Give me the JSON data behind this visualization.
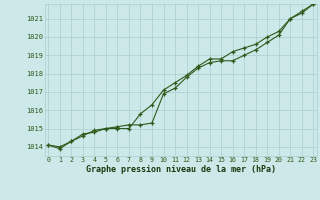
{
  "line1": [
    1014.1,
    1013.9,
    1014.3,
    1014.7,
    1014.8,
    1015.0,
    1015.1,
    1015.2,
    1015.2,
    1015.3,
    1016.9,
    1017.2,
    1017.8,
    1018.3,
    1018.6,
    1018.7,
    1018.7,
    1019.0,
    1019.3,
    1019.7,
    1020.1,
    1021.0,
    1021.3,
    1021.8
  ],
  "line2": [
    1014.1,
    1014.0,
    1014.3,
    1014.6,
    1014.9,
    1015.0,
    1015.0,
    1015.0,
    1015.8,
    1016.3,
    1017.1,
    1017.5,
    1017.9,
    1018.4,
    1018.8,
    1018.8,
    1019.2,
    1019.4,
    1019.6,
    1020.0,
    1020.3,
    1021.0,
    1021.4,
    1021.8
  ],
  "hours": [
    0,
    1,
    2,
    3,
    4,
    5,
    6,
    7,
    8,
    9,
    10,
    11,
    12,
    13,
    14,
    15,
    16,
    17,
    18,
    19,
    20,
    21,
    22,
    23
  ],
  "ylim": [
    1013.5,
    1021.8
  ],
  "yticks": [
    1014,
    1015,
    1016,
    1017,
    1018,
    1019,
    1020,
    1021
  ],
  "xlabel": "Graphe pression niveau de la mer (hPa)",
  "line_color": "#2d5a1b",
  "bg_color": "#cce8e8",
  "grid_color": "#aacece",
  "text_color": "#2d5a1b",
  "xlabel_color": "#1a3a10"
}
